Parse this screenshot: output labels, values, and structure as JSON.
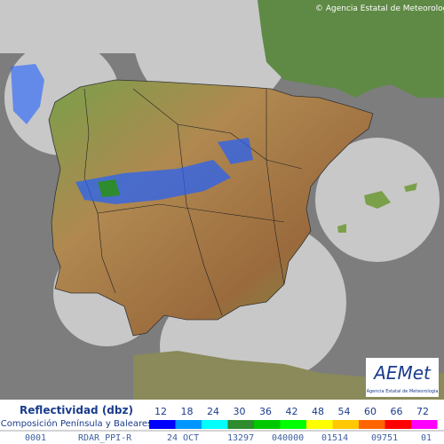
{
  "copyright": "© Agencia Estatal de Meteorología",
  "logo": {
    "name": "AEMet",
    "subtitle": "Agencia Estatal de Meteorología"
  },
  "legend": {
    "title": "Reflectividad (dbz)",
    "subtitle": "Composición Península y Baleares",
    "ticks": [
      "12",
      "18",
      "24",
      "30",
      "36",
      "42",
      "48",
      "54",
      "60",
      "66",
      "72"
    ],
    "colors": [
      "#0000fe",
      "#0096ff",
      "#00fefe",
      "#2e8b2e",
      "#00c800",
      "#00ff00",
      "#ffff00",
      "#ffc800",
      "#ff6400",
      "#ff0000",
      "#ff00ff"
    ]
  },
  "footer": [
    "0001",
    "RDAR_PPI-R",
    "24 OCT",
    "13297",
    "040000",
    "01514",
    "09751",
    "01"
  ]
}
